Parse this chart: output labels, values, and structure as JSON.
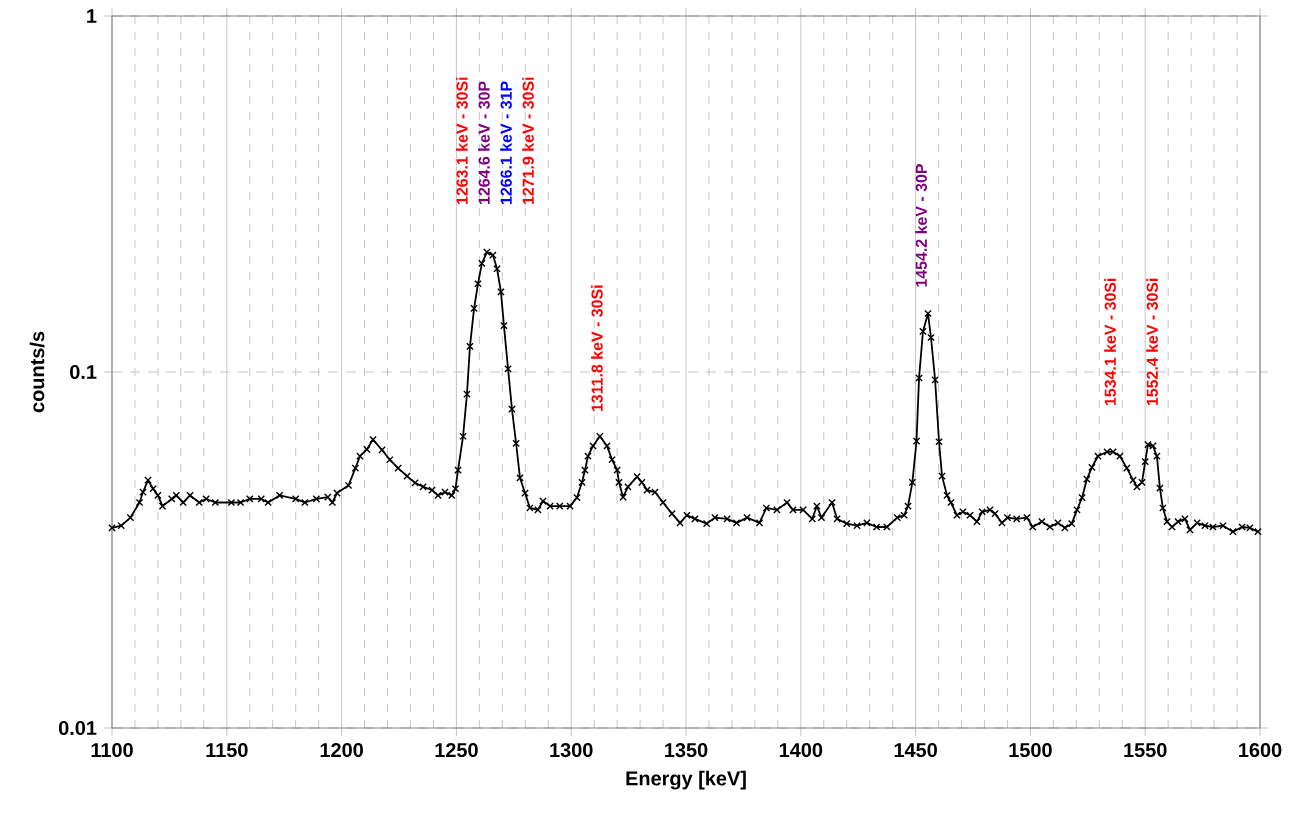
{
  "chart_data": {
    "type": "line",
    "xlabel": "Energy [keV]",
    "ylabel": "counts/s",
    "log": "y",
    "grid": true,
    "marker": "cross",
    "line_style": "solid",
    "xlim": [
      1100,
      1600
    ],
    "ylim": [
      0.01,
      1
    ],
    "xticks": [
      1100,
      {
        "value": 1110,
        "label": null
      },
      {
        "value": 1120,
        "label": null
      },
      {
        "value": 1130,
        "label": null
      },
      {
        "value": 1140,
        "label": null
      },
      1150,
      {
        "value": 1160,
        "label": null
      },
      {
        "value": 1170,
        "label": null
      },
      {
        "value": 1180,
        "label": null
      },
      {
        "value": 1190,
        "label": null
      },
      1200,
      {
        "value": 1210,
        "label": null
      },
      {
        "value": 1220,
        "label": null
      },
      {
        "value": 1230,
        "label": null
      },
      {
        "value": 1240,
        "label": null
      },
      1250,
      {
        "value": 1260,
        "label": null
      },
      {
        "value": 1270,
        "label": null
      },
      {
        "value": 1280,
        "label": null
      },
      {
        "value": 1290,
        "label": null
      },
      1300,
      {
        "value": 1310,
        "label": null
      },
      {
        "value": 1320,
        "label": null
      },
      {
        "value": 1330,
        "label": null
      },
      {
        "value": 1340,
        "label": null
      },
      1350,
      {
        "value": 1360,
        "label": null
      },
      {
        "value": 1370,
        "label": null
      },
      {
        "value": 1380,
        "label": null
      },
      {
        "value": 1390,
        "label": null
      },
      1400,
      {
        "value": 1410,
        "label": null
      },
      {
        "value": 1420,
        "label": null
      },
      {
        "value": 1430,
        "label": null
      },
      {
        "value": 1440,
        "label": null
      },
      1450,
      {
        "value": 1460,
        "label": null
      },
      {
        "value": 1470,
        "label": null
      },
      {
        "value": 1480,
        "label": null
      },
      {
        "value": 1490,
        "label": null
      },
      1500,
      {
        "value": 1510,
        "label": null
      },
      {
        "value": 1520,
        "label": null
      },
      {
        "value": 1530,
        "label": null
      },
      {
        "value": 1540,
        "label": null
      },
      1550,
      {
        "value": 1560,
        "label": null
      },
      {
        "value": 1570,
        "label": null
      },
      {
        "value": 1580,
        "label": null
      },
      {
        "value": 1590,
        "label": null
      },
      1600
    ],
    "yticks": [
      0.01,
      0.1,
      1
    ],
    "annotations": [
      "1263.1 keV - 30Si",
      "1264.6 keV - 30P",
      "1266.1 keV - 31P",
      "1271.9 keV - 30Si",
      "1311.8 keV - 30Si",
      "1454.2 keV - 30P",
      "1534.1 keV - 30Si",
      "1552.4 keV - 30Si"
    ],
    "series": [
      {
        "color": "#000000",
        "x": [
          1100,
          1104,
          1108,
          1112,
          1113.5,
          1115.7,
          1117.9,
          1120,
          1122,
          1126,
          1128,
          1131,
          1134,
          1138,
          1141,
          1145,
          1152,
          1156,
          1160,
          1165,
          1168,
          1173,
          1180,
          1184,
          1189,
          1194,
          1196,
          1198,
          1203,
          1206,
          1208,
          1211,
          1213.7,
          1217.6,
          1221,
          1224.6,
          1228.5,
          1232,
          1235.5,
          1239.4,
          1242,
          1245,
          1248,
          1249.6,
          1250.7,
          1252.9,
          1254.6,
          1255.9,
          1257.7,
          1259.4,
          1261.1,
          1263.3,
          1265.9,
          1267.7,
          1269.4,
          1270.7,
          1272.5,
          1274.2,
          1276,
          1277.7,
          1279.9,
          1282,
          1285.5,
          1287.7,
          1290.8,
          1295,
          1299.5,
          1302.5,
          1304.7,
          1306,
          1307.3,
          1309.5,
          1312.5,
          1315.6,
          1317.8,
          1320,
          1320.8,
          1322.6,
          1324.7,
          1328.7,
          1330.8,
          1333,
          1336.5,
          1340,
          1343.9,
          1347.4,
          1350.4,
          1353.9,
          1359,
          1362.6,
          1367.9,
          1372,
          1376.6,
          1382,
          1385,
          1389.6,
          1394,
          1396.6,
          1401,
          1405,
          1407,
          1409,
          1413.6,
          1415.8,
          1420,
          1424.5,
          1428.8,
          1433,
          1437.5,
          1442,
          1445,
          1446.7,
          1448.6,
          1450.4,
          1451.5,
          1453.2,
          1455.4,
          1456.7,
          1458.5,
          1460.2,
          1461.5,
          1463.7,
          1465.4,
          1468,
          1470.6,
          1473.7,
          1476.7,
          1479,
          1482.4,
          1484.6,
          1487.6,
          1490,
          1494,
          1498.5,
          1501,
          1505,
          1508.5,
          1512,
          1515,
          1518,
          1520.3,
          1522.5,
          1524.6,
          1526.8,
          1529.4,
          1533.4,
          1536,
          1539,
          1542,
          1544.7,
          1546.4,
          1548.6,
          1550,
          1551.2,
          1553.4,
          1555.1,
          1556.4,
          1557.7,
          1559.5,
          1561.7,
          1564.3,
          1567.3,
          1569.5,
          1572.6,
          1576,
          1579.5,
          1583.9,
          1588.2,
          1592.2,
          1595.6,
          1599.1
        ],
        "values": [
          0.0365,
          0.037,
          0.039,
          0.043,
          0.046,
          0.0497,
          0.047,
          0.045,
          0.042,
          0.044,
          0.045,
          0.043,
          0.045,
          0.043,
          0.044,
          0.043,
          0.043,
          0.043,
          0.044,
          0.044,
          0.043,
          0.045,
          0.044,
          0.043,
          0.044,
          0.0445,
          0.043,
          0.0457,
          0.048,
          0.0537,
          0.058,
          0.0606,
          0.0646,
          0.0604,
          0.0567,
          0.0537,
          0.051,
          0.0488,
          0.0476,
          0.0466,
          0.045,
          0.046,
          0.045,
          0.047,
          0.053,
          0.066,
          0.0867,
          0.118,
          0.151,
          0.177,
          0.202,
          0.217,
          0.213,
          0.195,
          0.168,
          0.135,
          0.102,
          0.0787,
          0.063,
          0.0504,
          0.0457,
          0.0415,
          0.041,
          0.0434,
          0.042,
          0.042,
          0.042,
          0.0444,
          0.049,
          0.053,
          0.058,
          0.062,
          0.066,
          0.062,
          0.0567,
          0.053,
          0.049,
          0.0445,
          0.0476,
          0.0508,
          0.049,
          0.0466,
          0.046,
          0.043,
          0.04,
          0.0377,
          0.0396,
          0.0387,
          0.0375,
          0.039,
          0.0387,
          0.0377,
          0.039,
          0.0377,
          0.0415,
          0.041,
          0.043,
          0.041,
          0.041,
          0.0387,
          0.042,
          0.039,
          0.043,
          0.0387,
          0.0375,
          0.037,
          0.0377,
          0.0367,
          0.0367,
          0.039,
          0.0396,
          0.042,
          0.049,
          0.064,
          0.0962,
          0.13,
          0.146,
          0.125,
          0.095,
          0.0637,
          0.051,
          0.045,
          0.043,
          0.0396,
          0.0405,
          0.0396,
          0.038,
          0.0405,
          0.041,
          0.04,
          0.0377,
          0.039,
          0.0387,
          0.039,
          0.0367,
          0.038,
          0.0367,
          0.0377,
          0.0365,
          0.0375,
          0.041,
          0.0444,
          0.05,
          0.054,
          0.058,
          0.0597,
          0.0597,
          0.058,
          0.0537,
          0.0497,
          0.0476,
          0.049,
          0.056,
          0.0625,
          0.062,
          0.058,
          0.0472,
          0.0415,
          0.038,
          0.0367,
          0.038,
          0.0387,
          0.036,
          0.0377,
          0.037,
          0.0367,
          0.037,
          0.0356,
          0.0367,
          0.0365,
          0.0356
        ]
      }
    ]
  }
}
